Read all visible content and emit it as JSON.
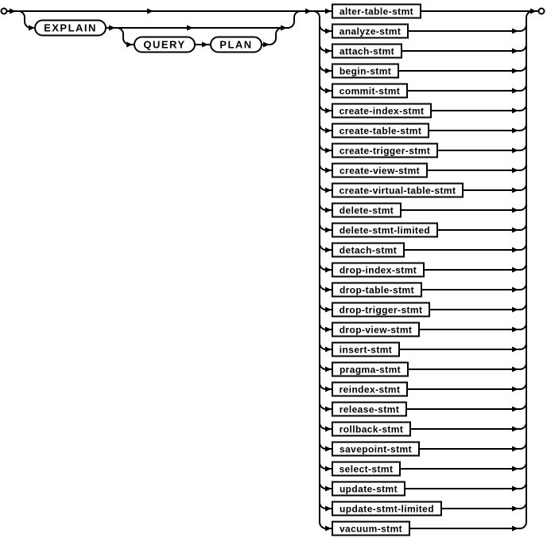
{
  "diagram": {
    "type": "railroad-syntax-diagram",
    "keywords": {
      "explain": "EXPLAIN",
      "query": "QUERY",
      "plan": "PLAN"
    },
    "statements": [
      "alter-table-stmt",
      "analyze-stmt",
      "attach-stmt",
      "begin-stmt",
      "commit-stmt",
      "create-index-stmt",
      "create-table-stmt",
      "create-trigger-stmt",
      "create-view-stmt",
      "create-virtual-table-stmt",
      "delete-stmt",
      "delete-stmt-limited",
      "detach-stmt",
      "drop-index-stmt",
      "drop-table-stmt",
      "drop-trigger-stmt",
      "drop-view-stmt",
      "insert-stmt",
      "pragma-stmt",
      "reindex-stmt",
      "release-stmt",
      "rollback-stmt",
      "savepoint-stmt",
      "select-stmt",
      "update-stmt",
      "update-stmt-limited",
      "vacuum-stmt"
    ],
    "colors": {
      "line": "#000000",
      "background": "#ffffff",
      "box_fill": "#ffffff"
    }
  }
}
